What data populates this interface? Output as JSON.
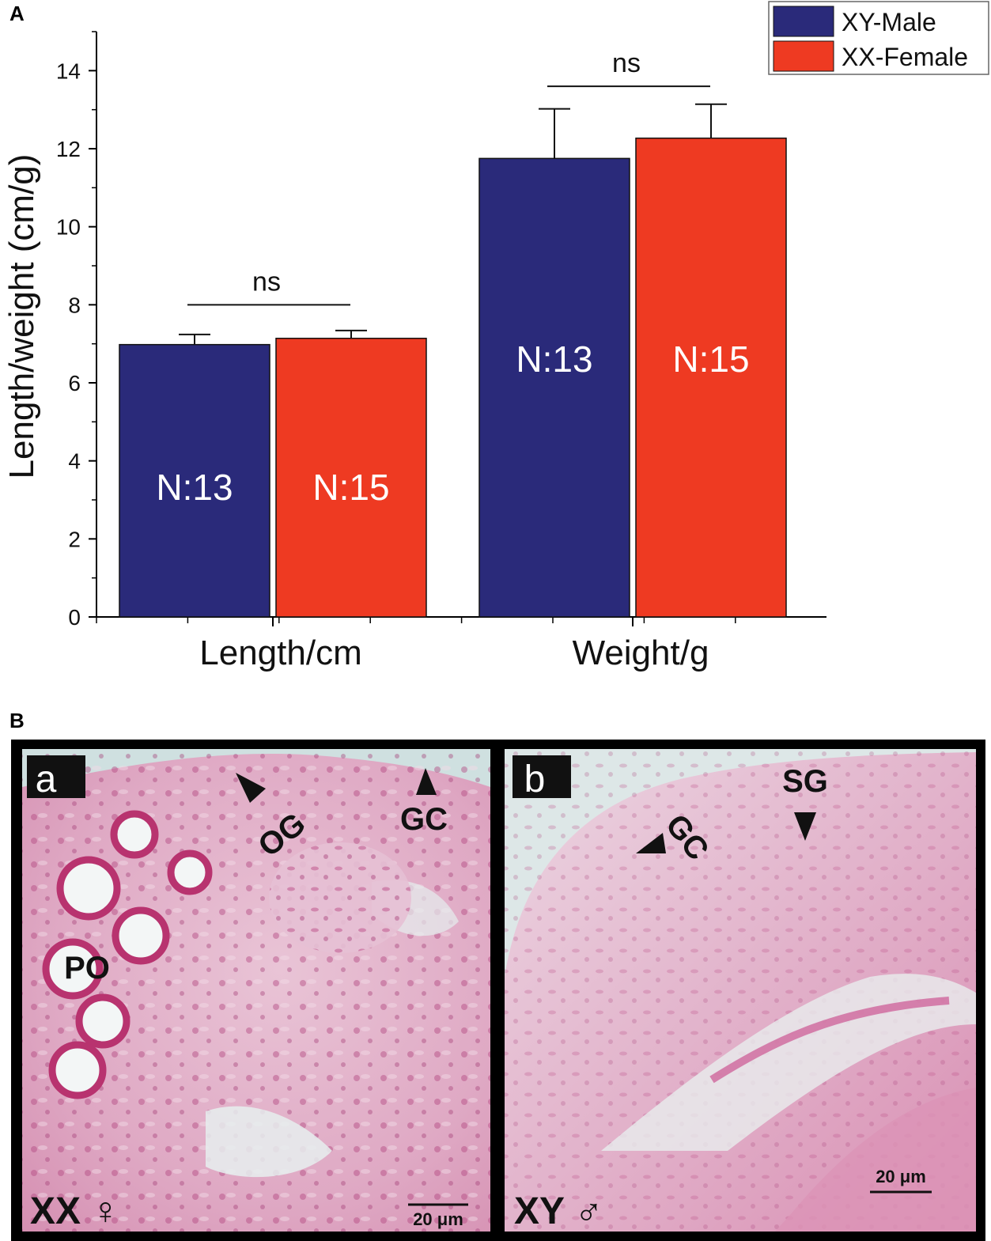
{
  "panel_labels": {
    "top": "A",
    "bottom": "B"
  },
  "chart_data": {
    "type": "bar",
    "title": "",
    "xlabel": "",
    "ylabel": "Length/weight (cm/g)",
    "ylim": [
      0,
      15
    ],
    "yticks": [
      0,
      2,
      4,
      6,
      8,
      10,
      12,
      14
    ],
    "categories": [
      "Length/cm",
      "Weight/g"
    ],
    "series": [
      {
        "name": "XY-Male",
        "color": "#2a2a7a",
        "values": [
          6.98,
          11.75
        ],
        "errors": [
          0.26,
          1.27
        ],
        "n_labels": [
          "N:13",
          "N:13"
        ]
      },
      {
        "name": "XX-Female",
        "color": "#ee3a22",
        "values": [
          7.14,
          12.27
        ],
        "errors": [
          0.2,
          0.87
        ],
        "n_labels": [
          "N:15",
          "N:15"
        ]
      }
    ],
    "significance": [
      {
        "category": "Length/cm",
        "label": "ns",
        "y": 8.0
      },
      {
        "category": "Weight/g",
        "label": "ns",
        "y": 13.6
      }
    ],
    "legend_position": "top-right"
  },
  "micrographs": [
    {
      "panel": "a",
      "genotype_label": "XX ♀",
      "scale_bar": "20 μm",
      "annotations": [
        "OG",
        "GC",
        "PO"
      ]
    },
    {
      "panel": "b",
      "genotype_label": "XY ♂",
      "scale_bar": "20 μm",
      "annotations": [
        "GC",
        "SG"
      ]
    }
  ]
}
